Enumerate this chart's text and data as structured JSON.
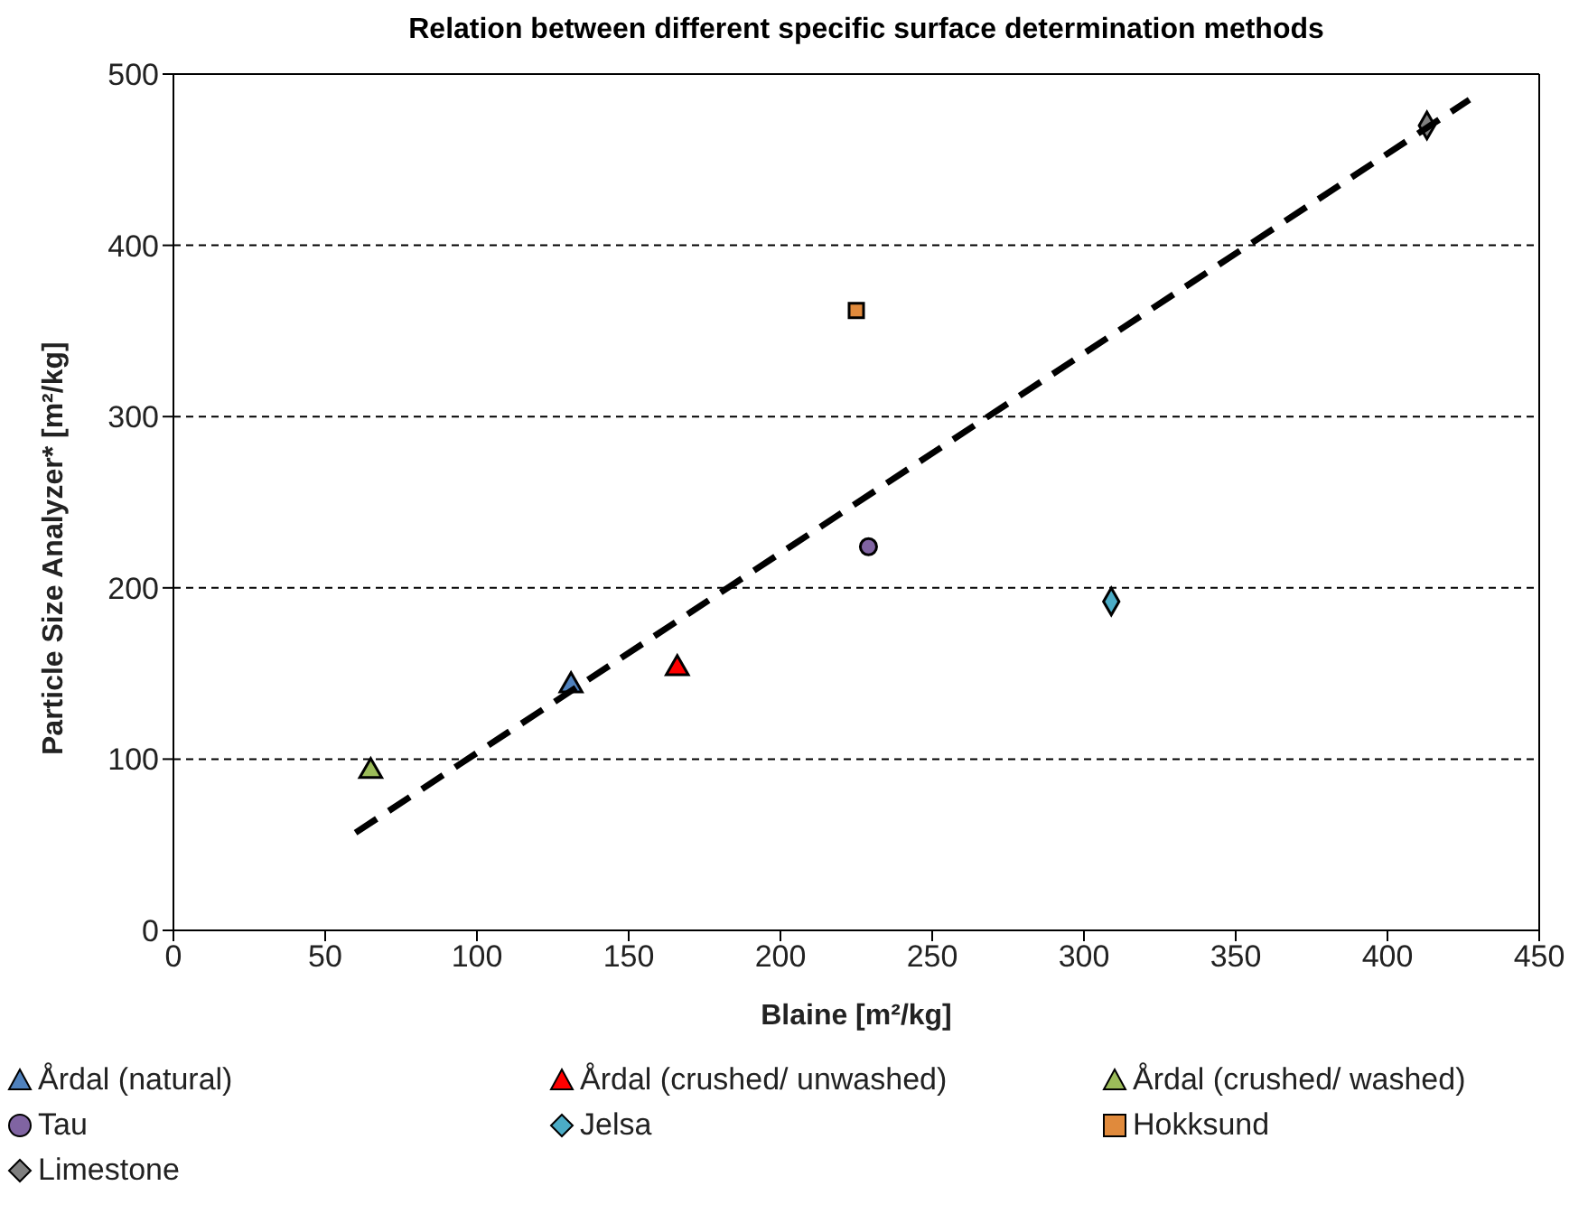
{
  "chart_data": {
    "type": "scatter",
    "title": "Relation between different specific surface determination methods",
    "xlabel": "Blaine [m²/kg]",
    "ylabel": "Particle Size Analyzer* [m²/kg]",
    "xlim": [
      0,
      450
    ],
    "xticks": [
      0,
      50,
      100,
      150,
      200,
      250,
      300,
      350,
      400,
      450
    ],
    "ylim": [
      0,
      500
    ],
    "yticks": [
      0,
      100,
      200,
      300,
      400,
      500
    ],
    "grid": "y",
    "legend": "bottom",
    "series": [
      {
        "name": "Årdal (natural)",
        "color": "#4f81bd",
        "marker": "triangle",
        "x": [
          131
        ],
        "values": [
          143
        ]
      },
      {
        "name": "Årdal (crushed/ unwashed)",
        "color": "#ff0000",
        "marker": "triangle",
        "x": [
          166
        ],
        "values": [
          153
        ]
      },
      {
        "name": "Årdal (crushed/ washed)",
        "color": "#9bbb59",
        "marker": "triangle",
        "x": [
          65
        ],
        "values": [
          93
        ]
      },
      {
        "name": "Tau",
        "color": "#8064a2",
        "marker": "circle",
        "x": [
          229
        ],
        "values": [
          224
        ]
      },
      {
        "name": "Jelsa",
        "color": "#4bacc6",
        "marker": "diamond",
        "x": [
          309
        ],
        "values": [
          192
        ]
      },
      {
        "name": "Hokksund",
        "color": "#e08a3c",
        "marker": "square",
        "x": [
          225
        ],
        "values": [
          362
        ]
      },
      {
        "name": "Limestone",
        "color": "#7f7f7f",
        "marker": "diamond",
        "x": [
          413
        ],
        "values": [
          470
        ]
      },
      {
        "type": "line",
        "color": "#000000",
        "line_style": "dashed",
        "marker": "none",
        "x": [
          60,
          427
        ],
        "values": [
          57,
          485
        ]
      }
    ]
  }
}
